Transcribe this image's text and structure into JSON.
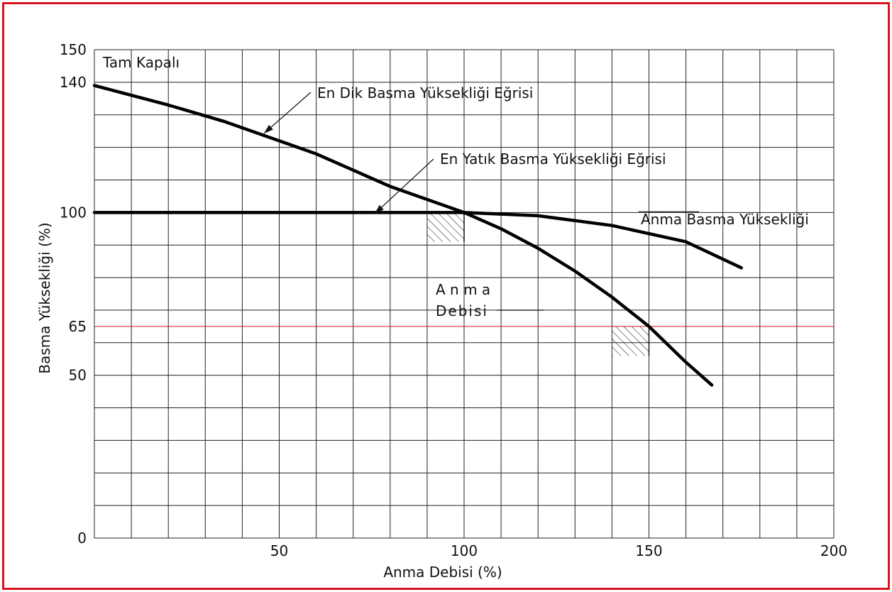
{
  "chart_data": {
    "type": "line",
    "xlabel": "Anma Debisi (%)",
    "ylabel": "Basma Yüksekliği (%)",
    "xlim": [
      0,
      200
    ],
    "ylim": [
      0,
      150
    ],
    "x_ticks": [
      50,
      100,
      150,
      200
    ],
    "y_ticks": [
      0,
      50,
      65,
      100,
      140,
      150
    ],
    "grid": true,
    "x_grid_step": 10,
    "y_grid_step": 10,
    "reference_line": {
      "y": 65,
      "color": "#d9121b"
    },
    "series": [
      {
        "name": "En Dik Basma Yüksekliği Eğrisi",
        "x": [
          0,
          20,
          35,
          50,
          60,
          70,
          80,
          90,
          100,
          110,
          120,
          130,
          140,
          150,
          160,
          167
        ],
        "y": [
          139,
          133,
          128,
          122,
          118,
          113,
          108,
          104,
          100,
          95,
          89,
          82,
          74,
          65,
          54,
          47
        ]
      },
      {
        "name": "En Yatık Basma Yüksekliği Eğrisi",
        "x": [
          0,
          100,
          120,
          140,
          160,
          175
        ],
        "y": [
          100,
          100,
          99,
          96,
          91,
          83
        ]
      }
    ],
    "annotations": {
      "tam_kapali": "Tam Kapalı",
      "steep_label": "En Dik Basma Yüksekliği Eğrisi",
      "flat_label": "En Yatık Basma Yüksekliği Eğrisi",
      "rated_head": "Anma Basma Yüksekliği",
      "rated_flow_line1": "A n m a",
      "rated_flow_line2": "Debisi"
    },
    "hatched_regions": [
      {
        "x": [
          90,
          100
        ],
        "y": [
          91,
          100
        ]
      },
      {
        "x": [
          140,
          150
        ],
        "y": [
          56,
          65
        ]
      }
    ],
    "colors": {
      "curve": "#000000",
      "grid": "#222222",
      "frame": "#d9121b",
      "reference": "#d9121b"
    }
  }
}
